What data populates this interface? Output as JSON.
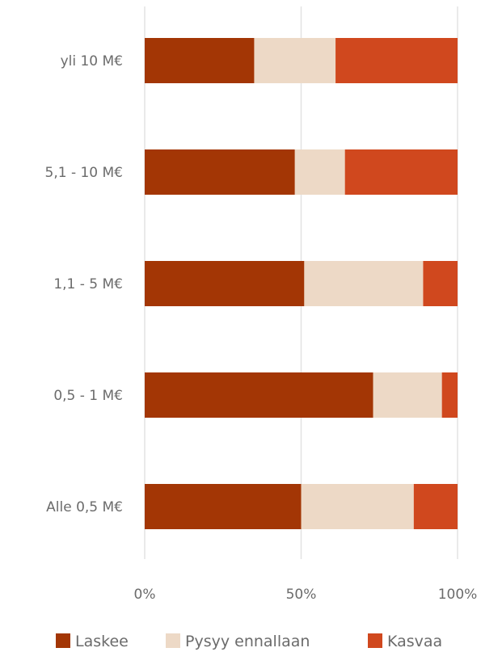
{
  "chart_data": {
    "type": "bar",
    "orientation": "horizontal",
    "stacked": true,
    "categories": [
      "yli 10 M€",
      "5,1 - 10 M€",
      "1,1 - 5 M€",
      "0,5 - 1 M€",
      "Alle 0,5 M€"
    ],
    "series": [
      {
        "name": "Laskee",
        "color": "#A33605",
        "values": [
          35,
          48,
          51,
          73,
          50
        ]
      },
      {
        "name": "Pysyy ennallaan",
        "color": "#EDD9C6",
        "values": [
          26,
          16,
          38,
          22,
          36
        ]
      },
      {
        "name": "Kasvaa",
        "color": "#D0481E",
        "values": [
          39,
          36,
          11,
          5,
          14
        ]
      }
    ],
    "xlim": [
      0,
      100
    ],
    "x_ticks": [
      "0%",
      "50%",
      "100%"
    ],
    "grid": true,
    "legend_position": "bottom",
    "title": "",
    "xlabel": "",
    "ylabel": ""
  }
}
